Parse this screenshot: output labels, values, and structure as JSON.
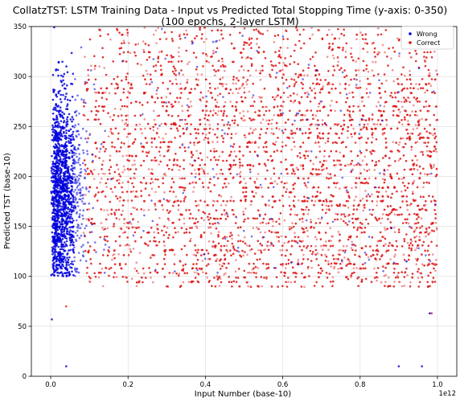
{
  "chart_data": {
    "type": "scatter",
    "title": "CollatzTST: LSTM Training Data - Input vs Predicted Total Stopping Time (y-axis: 0-350)",
    "subtitle": "(100 epochs, 2-layer LSTM)",
    "xlabel": "Input Number (base-10)",
    "ylabel": "Predicted TST (base-10)",
    "x_offset_label": "1e12",
    "xlim": [
      -0.05,
      1.05
    ],
    "ylim": [
      0,
      350
    ],
    "xticks": [
      0.0,
      0.2,
      0.4,
      0.6,
      0.8,
      1.0
    ],
    "xtick_labels": [
      "0.0",
      "0.2",
      "0.4",
      "0.6",
      "0.8",
      "1.0"
    ],
    "yticks": [
      0,
      50,
      100,
      150,
      200,
      250,
      300,
      350
    ],
    "ytick_labels": [
      "0",
      "50",
      "100",
      "150",
      "200",
      "250",
      "300",
      "350"
    ],
    "x_scale_factor": 1000000000000.0,
    "grid": true,
    "legend_position": "top-right",
    "series": [
      {
        "name": "Wrong",
        "color": "#0000dd",
        "description_range": {
          "x": [
            0.0,
            0.11
          ],
          "y": [
            100,
            350
          ]
        },
        "outliers": [
          {
            "x": 0.003,
            "y": 57
          },
          {
            "x": 0.04,
            "y": 10
          },
          {
            "x": 0.9,
            "y": 10
          },
          {
            "x": 0.96,
            "y": 10
          },
          {
            "x": 0.98,
            "y": 63
          },
          {
            "x": 0.92,
            "y": 115
          }
        ]
      },
      {
        "name": "Correct",
        "color": "#dd1111",
        "description_range": {
          "x": [
            0.08,
            1.0
          ],
          "y": [
            88,
            350
          ]
        },
        "outliers": [
          {
            "x": 0.985,
            "y": 63
          },
          {
            "x": 0.04,
            "y": 70
          },
          {
            "x": 0.3,
            "y": 90
          }
        ]
      }
    ]
  }
}
